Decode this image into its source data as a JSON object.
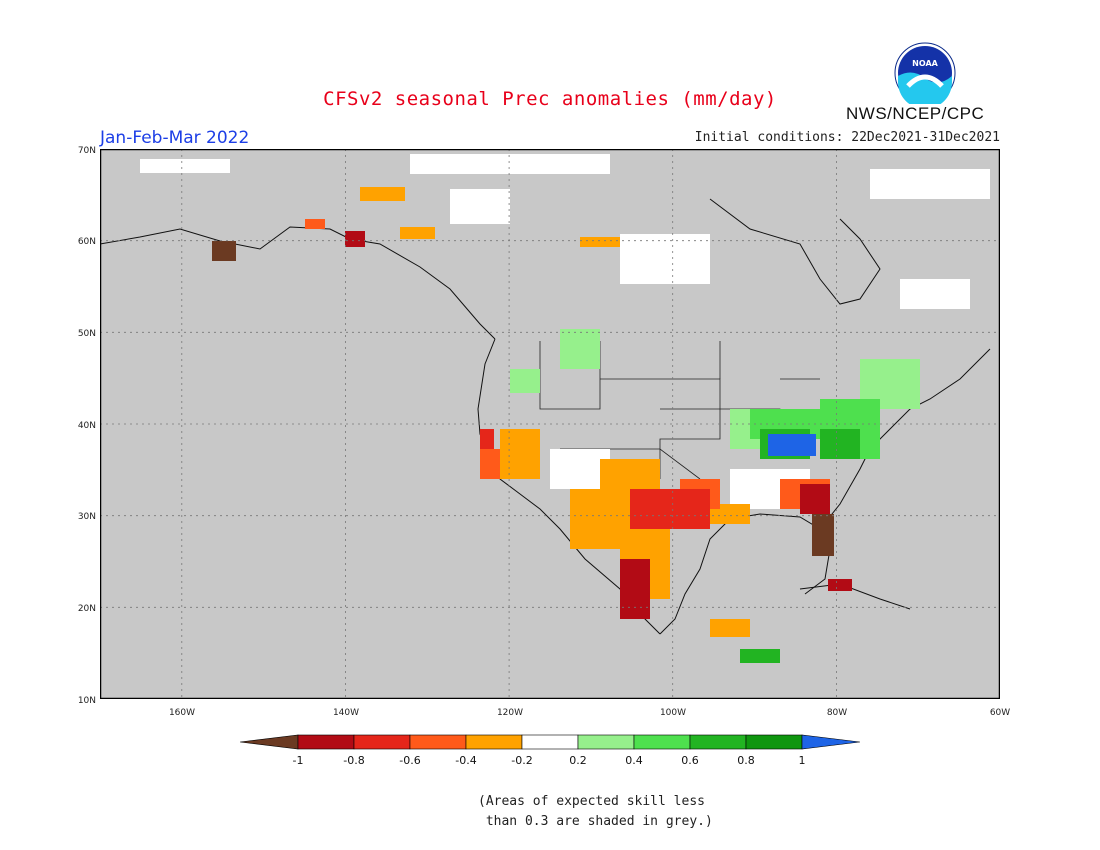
{
  "title": "CFSv2 seasonal Prec anomalies (mm/day)",
  "season_label": "Jan-Feb-Mar 2022",
  "initial_conditions": "Initial conditions: 22Dec2021-31Dec2021",
  "agency": "NWS/NCEP/CPC",
  "logo_text": "NOAA",
  "map": {
    "lon_range": [
      -170,
      -60
    ],
    "lat_range": [
      10,
      70
    ],
    "lon_labels": [
      "160W",
      "140W",
      "120W",
      "100W",
      "80W",
      "60W"
    ],
    "lat_labels": [
      "10N",
      "20N",
      "30N",
      "40N",
      "50N",
      "60N",
      "70N"
    ],
    "background_color": "#c8c8c8",
    "grid": "dotted"
  },
  "colorbar": {
    "labels": [
      "-1",
      "-0.8",
      "-0.6",
      "-0.4",
      "-0.2",
      "0.2",
      "0.4",
      "0.6",
      "0.8",
      "1"
    ],
    "colors": [
      "#6b3a22",
      "#b20b15",
      "#e5261a",
      "#ff5a1a",
      "#ffa200",
      "#ffffff",
      "#96f08c",
      "#4ee04e",
      "#22b422",
      "#0f960f",
      "#1e64e6"
    ]
  },
  "anomaly_regions": [
    {
      "region": "Florida",
      "level": "-1",
      "color": "#6b3a22"
    },
    {
      "region": "Southern Alaska",
      "level": "-1",
      "color": "#6b3a22"
    },
    {
      "region": "Texas / Gulf Coast",
      "level": "-0.8",
      "color": "#b20b15"
    },
    {
      "region": "Western Mexico",
      "level": "-0.8",
      "color": "#b20b15"
    },
    {
      "region": "Southern California coast",
      "level": "-0.6",
      "color": "#e5261a"
    },
    {
      "region": "US Southwest",
      "level": "-0.4",
      "color": "#ffa200"
    },
    {
      "region": "Ohio Valley",
      "level": "0.6",
      "color": "#4ee04e"
    },
    {
      "region": "Kentucky / Tennessee",
      "level": "1",
      "color": "#1e64e6"
    }
  ],
  "note": "(Areas of expected skill less\n than 0.3 are shaded in grey.)"
}
